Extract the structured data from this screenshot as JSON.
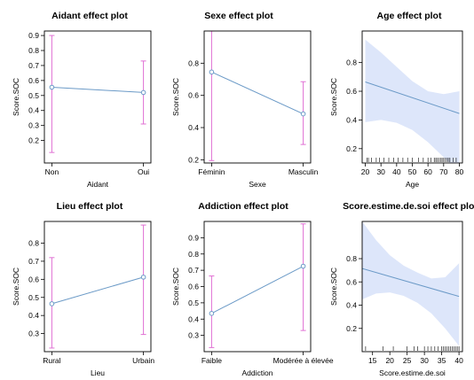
{
  "chart_data": [
    {
      "type": "line",
      "kind": "factor",
      "title": "Aidant effect plot",
      "xlabel": "Aidant",
      "ylabel": "Score.SOC",
      "categories": [
        "Non",
        "Oui"
      ],
      "values": [
        0.555,
        0.52
      ],
      "lower": [
        0.12,
        0.31
      ],
      "upper": [
        0.9,
        0.73
      ],
      "ylim": [
        0.05,
        0.93
      ],
      "yticks": [
        0.2,
        0.3,
        0.4,
        0.5,
        0.6,
        0.7,
        0.8,
        0.9
      ],
      "colors": {
        "line": "#6b9ac7",
        "ci": "#e070d4"
      }
    },
    {
      "type": "line",
      "kind": "factor",
      "title": "Sexe effect plot",
      "xlabel": "Sexe",
      "ylabel": "Score.SOC",
      "categories": [
        "Féminin",
        "Masculin"
      ],
      "values": [
        0.745,
        0.485
      ],
      "lower": [
        0.195,
        0.295
      ],
      "upper": [
        1.0,
        0.685
      ],
      "ylim": [
        0.18,
        1.0
      ],
      "yticks": [
        0.2,
        0.4,
        0.6,
        0.8
      ],
      "colors": {
        "line": "#6b9ac7",
        "ci": "#e070d4"
      }
    },
    {
      "type": "area",
      "kind": "numeric",
      "title": "Age effect plot",
      "xlabel": "Age",
      "ylabel": "Score.SOC",
      "x": [
        20,
        80
      ],
      "fit": [
        0.665,
        0.445
      ],
      "band_x": [
        20,
        30,
        40,
        50,
        60,
        70,
        80
      ],
      "band_lower": [
        0.385,
        0.4,
        0.38,
        0.33,
        0.245,
        0.14,
        0.035
      ],
      "band_upper": [
        0.96,
        0.87,
        0.77,
        0.67,
        0.6,
        0.58,
        0.6
      ],
      "rug": [
        21,
        22,
        24,
        27,
        29,
        32,
        35,
        38,
        41,
        44,
        47,
        50,
        54,
        57,
        60,
        62,
        64,
        65,
        66,
        67,
        68,
        69,
        70,
        71,
        72,
        73,
        74,
        76,
        78
      ],
      "xlim": [
        18,
        82
      ],
      "ylim": [
        0.1,
        1.02
      ],
      "xticks": [
        20,
        30,
        40,
        50,
        60,
        70,
        80
      ],
      "yticks": [
        0.2,
        0.4,
        0.6,
        0.8
      ],
      "colors": {
        "line": "#6b9ac7",
        "band": "#dde6fa"
      }
    },
    {
      "type": "line",
      "kind": "factor",
      "title": "Lieu effect plot",
      "xlabel": "Lieu",
      "ylabel": "Score.SOC",
      "categories": [
        "Rural",
        "Urbain"
      ],
      "values": [
        0.465,
        0.612
      ],
      "lower": [
        0.22,
        0.295
      ],
      "upper": [
        0.72,
        0.9
      ],
      "ylim": [
        0.2,
        0.92
      ],
      "yticks": [
        0.3,
        0.4,
        0.5,
        0.6,
        0.7,
        0.8
      ],
      "colors": {
        "line": "#6b9ac7",
        "ci": "#e070d4"
      }
    },
    {
      "type": "line",
      "kind": "factor",
      "title": "Addiction effect plot",
      "xlabel": "Addiction",
      "ylabel": "Score.SOC",
      "categories": [
        "Faible",
        "Modérée à élevée"
      ],
      "values": [
        0.435,
        0.725
      ],
      "lower": [
        0.225,
        0.33
      ],
      "upper": [
        0.665,
        0.985
      ],
      "ylim": [
        0.2,
        1.0
      ],
      "yticks": [
        0.3,
        0.4,
        0.5,
        0.6,
        0.7,
        0.8,
        0.9
      ],
      "colors": {
        "line": "#6b9ac7",
        "ci": "#e070d4"
      }
    },
    {
      "type": "area",
      "kind": "numeric",
      "title": "Score.estime.de.soi effect plot",
      "xlabel": "Score.estime.de.soi",
      "ylabel": "Score.SOC",
      "x": [
        12,
        40
      ],
      "fit": [
        0.715,
        0.475
      ],
      "band_x": [
        12,
        16,
        20,
        24,
        28,
        32,
        36,
        40
      ],
      "band_lower": [
        0.45,
        0.5,
        0.51,
        0.48,
        0.42,
        0.33,
        0.2,
        0.05
      ],
      "band_upper": [
        1.12,
        0.96,
        0.83,
        0.74,
        0.68,
        0.63,
        0.64,
        0.76
      ],
      "rug": [
        13,
        18,
        21,
        25,
        27,
        28,
        30,
        31,
        32,
        33,
        34,
        35,
        35.5,
        36,
        36.5,
        37,
        37.5,
        38,
        38.5,
        39,
        39.5,
        40
      ],
      "xlim": [
        12,
        41
      ],
      "ylim": [
        0.0,
        1.12
      ],
      "xticks": [
        15,
        20,
        25,
        30,
        35,
        40
      ],
      "yticks": [
        0.2,
        0.4,
        0.6,
        0.8
      ],
      "colors": {
        "line": "#6b9ac7",
        "band": "#dde6fa"
      }
    }
  ]
}
